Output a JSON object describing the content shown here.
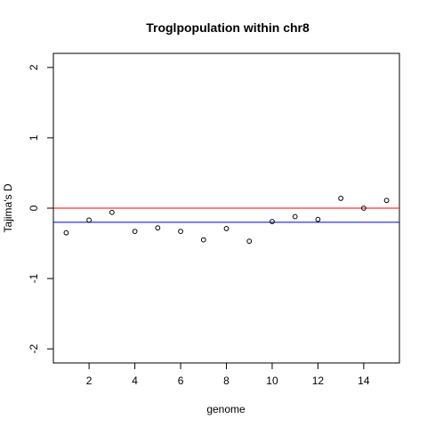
{
  "chart_data": {
    "type": "scatter",
    "title": "Troglpopulation within chr8",
    "xlabel": "genome",
    "ylabel": "Tajima's D",
    "xlim": [
      0.44,
      15.56
    ],
    "ylim": [
      -2.2,
      2.2
    ],
    "x_ticks": [
      2,
      4,
      6,
      8,
      10,
      12,
      14
    ],
    "y_ticks": [
      -2,
      -1,
      0,
      1,
      2
    ],
    "grid": false,
    "points": [
      {
        "x": 1,
        "y": -0.35
      },
      {
        "x": 2,
        "y": -0.17
      },
      {
        "x": 3,
        "y": -0.06
      },
      {
        "x": 4,
        "y": -0.33
      },
      {
        "x": 5,
        "y": -0.28
      },
      {
        "x": 6,
        "y": -0.33
      },
      {
        "x": 7,
        "y": -0.45
      },
      {
        "x": 8,
        "y": -0.29
      },
      {
        "x": 9,
        "y": -0.47
      },
      {
        "x": 10,
        "y": -0.19
      },
      {
        "x": 11,
        "y": -0.12
      },
      {
        "x": 12,
        "y": -0.16
      },
      {
        "x": 13,
        "y": 0.14
      },
      {
        "x": 14,
        "y": 0.0
      },
      {
        "x": 15,
        "y": 0.11
      }
    ],
    "reference_lines": [
      {
        "y": 0.0,
        "color": "#ff0000"
      },
      {
        "y": -0.2,
        "color": "#0000cc"
      }
    ],
    "colors": {
      "axis": "#000000",
      "points": "#000000"
    }
  }
}
